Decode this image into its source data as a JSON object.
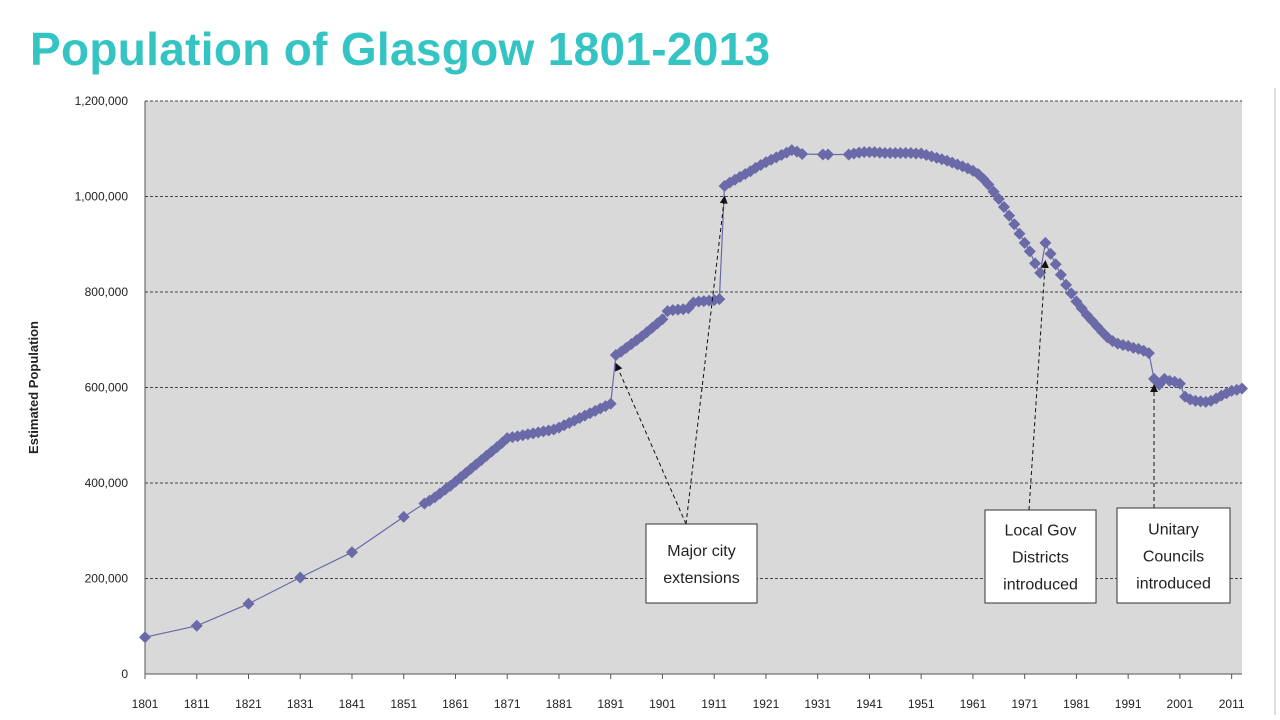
{
  "title": "Population of Glasgow 1801-2013",
  "colors": {
    "title": "#35c4c4",
    "plot_background": "#d9d9d9",
    "marker": "#6a6aa8",
    "gridline": "#444444"
  },
  "chart_data": {
    "type": "scatter",
    "title": "Population of Glasgow 1801-2013",
    "xlabel": "",
    "ylabel": "Estimated Population",
    "xlim": [
      1801,
      2013
    ],
    "ylim": [
      0,
      1200000
    ],
    "grid": true,
    "x_ticks": [
      "1801",
      "1811",
      "1821",
      "1831",
      "1841",
      "1851",
      "1861",
      "1871",
      "1881",
      "1891",
      "1901",
      "1911",
      "1921",
      "1931",
      "1941",
      "1951",
      "1961",
      "1971",
      "1981",
      "1991",
      "2001",
      "2011"
    ],
    "y_ticks": [
      "0",
      "200,000",
      "400,000",
      "600,000",
      "800,000",
      "1,000,000",
      "1,200,000"
    ],
    "series": [
      {
        "points": [
          [
            1801,
            77000
          ],
          [
            1811,
            101000
          ],
          [
            1821,
            147000
          ],
          [
            1831,
            202000
          ],
          [
            1841,
            255000
          ],
          [
            1851,
            329000
          ],
          [
            1855,
            357000
          ],
          [
            1856,
            363000
          ],
          [
            1857,
            370000
          ],
          [
            1858,
            378000
          ],
          [
            1859,
            386000
          ],
          [
            1860,
            394000
          ],
          [
            1861,
            403000
          ],
          [
            1862,
            412000
          ],
          [
            1863,
            421000
          ],
          [
            1864,
            430000
          ],
          [
            1865,
            439000
          ],
          [
            1866,
            448000
          ],
          [
            1867,
            457000
          ],
          [
            1868,
            466000
          ],
          [
            1869,
            475000
          ],
          [
            1870,
            484000
          ],
          [
            1871,
            494000
          ],
          [
            1872,
            496000
          ],
          [
            1873,
            498000
          ],
          [
            1874,
            500000
          ],
          [
            1875,
            502000
          ],
          [
            1876,
            504000
          ],
          [
            1877,
            506000
          ],
          [
            1878,
            508000
          ],
          [
            1879,
            510000
          ],
          [
            1880,
            512000
          ],
          [
            1881,
            516000
          ],
          [
            1882,
            521000
          ],
          [
            1883,
            526000
          ],
          [
            1884,
            531000
          ],
          [
            1885,
            536000
          ],
          [
            1886,
            541000
          ],
          [
            1887,
            546000
          ],
          [
            1888,
            551000
          ],
          [
            1889,
            556000
          ],
          [
            1890,
            561000
          ],
          [
            1891,
            566000
          ],
          [
            1892,
            668000
          ],
          [
            1893,
            675000
          ],
          [
            1894,
            683000
          ],
          [
            1895,
            691000
          ],
          [
            1896,
            699000
          ],
          [
            1897,
            707000
          ],
          [
            1898,
            716000
          ],
          [
            1899,
            725000
          ],
          [
            1900,
            734000
          ],
          [
            1901,
            743000
          ],
          [
            1902,
            760000
          ],
          [
            1903,
            762000
          ],
          [
            1904,
            763000
          ],
          [
            1905,
            764000
          ],
          [
            1906,
            766000
          ],
          [
            1907,
            778000
          ],
          [
            1908,
            780000
          ],
          [
            1909,
            781000
          ],
          [
            1910,
            782000
          ],
          [
            1911,
            783000
          ],
          [
            1912,
            785000
          ],
          [
            1913,
            1022000
          ],
          [
            1914,
            1029000
          ],
          [
            1915,
            1035000
          ],
          [
            1916,
            1041000
          ],
          [
            1917,
            1047000
          ],
          [
            1918,
            1053000
          ],
          [
            1919,
            1060000
          ],
          [
            1920,
            1066000
          ],
          [
            1921,
            1072000
          ],
          [
            1922,
            1077000
          ],
          [
            1923,
            1082000
          ],
          [
            1924,
            1087000
          ],
          [
            1925,
            1092000
          ],
          [
            1926,
            1097000
          ],
          [
            1927,
            1094000
          ],
          [
            1928,
            1089000
          ],
          [
            1932,
            1088000
          ],
          [
            1933,
            1088000
          ],
          [
            1937,
            1088000
          ],
          [
            1938,
            1090000
          ],
          [
            1939,
            1092000
          ],
          [
            1940,
            1093000
          ],
          [
            1941,
            1093000
          ],
          [
            1942,
            1093000
          ],
          [
            1943,
            1092000
          ],
          [
            1944,
            1091000
          ],
          [
            1945,
            1091000
          ],
          [
            1946,
            1091000
          ],
          [
            1947,
            1091000
          ],
          [
            1948,
            1091000
          ],
          [
            1949,
            1091000
          ],
          [
            1950,
            1090000
          ],
          [
            1951,
            1090000
          ],
          [
            1952,
            1087000
          ],
          [
            1953,
            1084000
          ],
          [
            1954,
            1081000
          ],
          [
            1955,
            1078000
          ],
          [
            1956,
            1075000
          ],
          [
            1957,
            1071000
          ],
          [
            1958,
            1067000
          ],
          [
            1959,
            1063000
          ],
          [
            1960,
            1059000
          ],
          [
            1961,
            1054000
          ],
          [
            1962,
            1047000
          ],
          [
            1963,
            1037000
          ],
          [
            1964,
            1025000
          ],
          [
            1965,
            1010000
          ],
          [
            1966,
            995000
          ],
          [
            1967,
            978000
          ],
          [
            1968,
            960000
          ],
          [
            1969,
            942000
          ],
          [
            1970,
            922000
          ],
          [
            1971,
            903000
          ],
          [
            1972,
            885000
          ],
          [
            1973,
            860000
          ],
          [
            1974,
            840000
          ],
          [
            1975,
            903000
          ],
          [
            1976,
            880000
          ],
          [
            1977,
            858000
          ],
          [
            1978,
            836000
          ],
          [
            1979,
            815000
          ],
          [
            1980,
            797000
          ],
          [
            1981,
            780000
          ],
          [
            1982,
            766000
          ],
          [
            1983,
            752000
          ],
          [
            1984,
            740000
          ],
          [
            1985,
            728000
          ],
          [
            1986,
            716000
          ],
          [
            1987,
            705000
          ],
          [
            1988,
            697000
          ],
          [
            1989,
            692000
          ],
          [
            1990,
            689000
          ],
          [
            1991,
            687000
          ],
          [
            1992,
            683000
          ],
          [
            1993,
            681000
          ],
          [
            1994,
            677000
          ],
          [
            1995,
            672000
          ],
          [
            1996,
            618000
          ],
          [
            1997,
            606000
          ],
          [
            1998,
            618000
          ],
          [
            1999,
            614000
          ],
          [
            2000,
            612000
          ],
          [
            2001,
            608000
          ],
          [
            2002,
            581000
          ],
          [
            2003,
            575000
          ],
          [
            2004,
            572000
          ],
          [
            2005,
            571000
          ],
          [
            2006,
            570000
          ],
          [
            2007,
            572000
          ],
          [
            2008,
            577000
          ],
          [
            2009,
            583000
          ],
          [
            2010,
            588000
          ],
          [
            2011,
            593000
          ],
          [
            2012,
            595000
          ],
          [
            2013,
            598000
          ]
        ]
      }
    ],
    "annotations": [
      {
        "lines": [
          "Major city",
          "extensions"
        ],
        "arrow_targets": [
          [
            1892,
            650000
          ],
          [
            1913,
            1000000
          ]
        ]
      },
      {
        "lines": [
          "Local Gov",
          "Districts",
          "introduced"
        ],
        "arrow_targets": [
          [
            1975,
            865000
          ]
        ]
      },
      {
        "lines": [
          "Unitary",
          "Councils",
          "introduced"
        ],
        "arrow_targets": [
          [
            1996,
            605000
          ]
        ]
      }
    ]
  }
}
